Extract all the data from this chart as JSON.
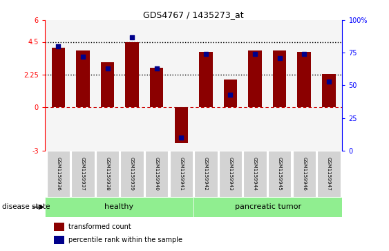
{
  "title": "GDS4767 / 1435273_at",
  "samples": [
    "GSM1159936",
    "GSM1159937",
    "GSM1159938",
    "GSM1159939",
    "GSM1159940",
    "GSM1159941",
    "GSM1159942",
    "GSM1159943",
    "GSM1159944",
    "GSM1159945",
    "GSM1159946",
    "GSM1159947"
  ],
  "transformed_count": [
    4.1,
    3.9,
    3.1,
    4.5,
    2.7,
    -2.5,
    3.8,
    1.9,
    3.9,
    3.9,
    3.8,
    2.3
  ],
  "percentile_rank": [
    80,
    72,
    63,
    87,
    63,
    10,
    74,
    43,
    74,
    71,
    74,
    53
  ],
  "bar_color": "#8B0000",
  "dot_color": "#00008B",
  "ylim_left": [
    -3,
    6
  ],
  "ylim_right": [
    0,
    100
  ],
  "yticks_left": [
    -3,
    0,
    2.25,
    4.5,
    6
  ],
  "ytick_labels_left": [
    "-3",
    "0",
    "2.25",
    "4.5",
    "6"
  ],
  "yticks_right": [
    0,
    25,
    50,
    75,
    100
  ],
  "ytick_labels_right": [
    "0",
    "25",
    "50",
    "75",
    "100%"
  ],
  "healthy_color": "#90EE90",
  "tumor_color": "#90EE90",
  "legend_items": [
    "transformed count",
    "percentile rank within the sample"
  ]
}
